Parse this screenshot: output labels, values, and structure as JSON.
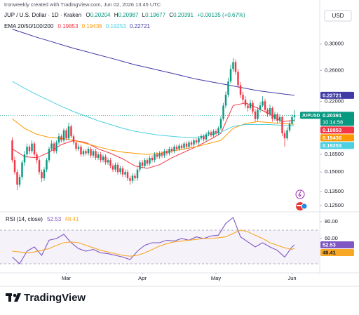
{
  "header": {
    "attribution": "tronweekly created with TradingView.com, Jun 02, 2026 13:45 UTC",
    "symbol": "JUP / U.S. Dollar · 1D · Kraken",
    "ohlc": [
      "O",
      "0.20204",
      "H",
      "0.20987",
      "L",
      "0.19677",
      "C",
      "0.20391",
      "+0.00135 (+0.67%)"
    ],
    "indicator": "EMA 20/50/100/200",
    "currency": "USD"
  },
  "chart_data": [
    {
      "type": "candlestick",
      "log_scale": true,
      "xlim": [
        -5,
        125
      ],
      "ylim": [
        0.1218,
        0.3475
      ],
      "up_color": "#089981",
      "down_color": "#f23645",
      "symbol_tag": "JUPUSD",
      "countdown": "10:14:58",
      "yticks": [
        {
          "value": 0.3,
          "label": "0.30000"
        },
        {
          "value": 0.26,
          "label": "0.26000"
        },
        {
          "value": 0.22,
          "label": "0.22000"
        },
        {
          "value": 0.165,
          "label": "0.16500"
        },
        {
          "value": 0.15,
          "label": "0.15000"
        },
        {
          "value": 0.135,
          "label": "0.13500"
        },
        {
          "value": 0.125,
          "label": "0.12500"
        }
      ],
      "candles": [
        [
          0.178,
          0.181,
          0.158,
          0.16
        ],
        [
          0.16,
          0.163,
          0.148,
          0.15
        ],
        [
          0.15,
          0.152,
          0.136,
          0.14
        ],
        [
          0.14,
          0.148,
          0.138,
          0.146
        ],
        [
          0.146,
          0.16,
          0.144,
          0.158
        ],
        [
          0.158,
          0.168,
          0.155,
          0.165
        ],
        [
          0.165,
          0.175,
          0.162,
          0.172
        ],
        [
          0.172,
          0.174,
          0.165,
          0.168
        ],
        [
          0.168,
          0.178,
          0.166,
          0.175
        ],
        [
          0.175,
          0.177,
          0.163,
          0.165
        ],
        [
          0.165,
          0.167,
          0.157,
          0.16
        ],
        [
          0.16,
          0.162,
          0.148,
          0.15
        ],
        [
          0.15,
          0.152,
          0.142,
          0.145
        ],
        [
          0.145,
          0.154,
          0.143,
          0.152
        ],
        [
          0.152,
          0.162,
          0.15,
          0.16
        ],
        [
          0.16,
          0.172,
          0.158,
          0.17
        ],
        [
          0.17,
          0.178,
          0.168,
          0.175
        ],
        [
          0.175,
          0.177,
          0.166,
          0.168
        ],
        [
          0.168,
          0.178,
          0.166,
          0.176
        ],
        [
          0.176,
          0.185,
          0.174,
          0.182
        ],
        [
          0.182,
          0.184,
          0.176,
          0.178
        ],
        [
          0.178,
          0.19,
          0.176,
          0.188
        ],
        [
          0.188,
          0.19,
          0.178,
          0.18
        ],
        [
          0.18,
          0.196,
          0.178,
          0.192
        ],
        [
          0.192,
          0.194,
          0.18,
          0.182
        ],
        [
          0.182,
          0.184,
          0.174,
          0.176
        ],
        [
          0.176,
          0.178,
          0.168,
          0.17
        ],
        [
          0.17,
          0.175,
          0.168,
          0.172
        ],
        [
          0.172,
          0.174,
          0.163,
          0.165
        ],
        [
          0.165,
          0.17,
          0.163,
          0.168
        ],
        [
          0.168,
          0.17,
          0.164,
          0.166
        ],
        [
          0.166,
          0.172,
          0.164,
          0.17
        ],
        [
          0.17,
          0.172,
          0.162,
          0.164
        ],
        [
          0.164,
          0.17,
          0.162,
          0.168
        ],
        [
          0.168,
          0.17,
          0.16,
          0.162
        ],
        [
          0.162,
          0.167,
          0.16,
          0.165
        ],
        [
          0.165,
          0.167,
          0.158,
          0.16
        ],
        [
          0.16,
          0.165,
          0.158,
          0.163
        ],
        [
          0.163,
          0.165,
          0.156,
          0.158
        ],
        [
          0.158,
          0.162,
          0.156,
          0.16
        ],
        [
          0.16,
          0.162,
          0.153,
          0.155
        ],
        [
          0.155,
          0.157,
          0.15,
          0.152
        ],
        [
          0.152,
          0.158,
          0.15,
          0.156
        ],
        [
          0.156,
          0.158,
          0.148,
          0.15
        ],
        [
          0.15,
          0.155,
          0.148,
          0.153
        ],
        [
          0.153,
          0.155,
          0.146,
          0.148
        ],
        [
          0.148,
          0.152,
          0.146,
          0.15
        ],
        [
          0.15,
          0.152,
          0.143,
          0.145
        ],
        [
          0.145,
          0.147,
          0.14,
          0.143
        ],
        [
          0.143,
          0.149,
          0.141,
          0.147
        ],
        [
          0.147,
          0.149,
          0.143,
          0.145
        ],
        [
          0.145,
          0.154,
          0.143,
          0.152
        ],
        [
          0.152,
          0.16,
          0.15,
          0.158
        ],
        [
          0.158,
          0.16,
          0.153,
          0.155
        ],
        [
          0.155,
          0.162,
          0.153,
          0.16
        ],
        [
          0.16,
          0.162,
          0.155,
          0.157
        ],
        [
          0.157,
          0.164,
          0.155,
          0.162
        ],
        [
          0.162,
          0.164,
          0.158,
          0.16
        ],
        [
          0.16,
          0.167,
          0.158,
          0.165
        ],
        [
          0.165,
          0.167,
          0.161,
          0.163
        ],
        [
          0.163,
          0.168,
          0.161,
          0.166
        ],
        [
          0.166,
          0.168,
          0.162,
          0.164
        ],
        [
          0.164,
          0.17,
          0.162,
          0.168
        ],
        [
          0.168,
          0.17,
          0.164,
          0.166
        ],
        [
          0.166,
          0.172,
          0.164,
          0.17
        ],
        [
          0.17,
          0.172,
          0.166,
          0.168
        ],
        [
          0.168,
          0.174,
          0.166,
          0.172
        ],
        [
          0.172,
          0.174,
          0.168,
          0.17
        ],
        [
          0.17,
          0.175,
          0.168,
          0.173
        ],
        [
          0.173,
          0.175,
          0.169,
          0.171
        ],
        [
          0.171,
          0.177,
          0.169,
          0.175
        ],
        [
          0.175,
          0.177,
          0.17,
          0.172
        ],
        [
          0.172,
          0.178,
          0.17,
          0.176
        ],
        [
          0.176,
          0.178,
          0.172,
          0.174
        ],
        [
          0.174,
          0.18,
          0.172,
          0.178
        ],
        [
          0.178,
          0.18,
          0.174,
          0.176
        ],
        [
          0.176,
          0.182,
          0.174,
          0.18
        ],
        [
          0.18,
          0.184,
          0.178,
          0.182
        ],
        [
          0.182,
          0.184,
          0.177,
          0.179
        ],
        [
          0.179,
          0.186,
          0.177,
          0.184
        ],
        [
          0.184,
          0.188,
          0.182,
          0.186
        ],
        [
          0.186,
          0.188,
          0.181,
          0.183
        ],
        [
          0.183,
          0.189,
          0.181,
          0.187
        ],
        [
          0.187,
          0.189,
          0.183,
          0.185
        ],
        [
          0.185,
          0.192,
          0.183,
          0.19
        ],
        [
          0.19,
          0.203,
          0.188,
          0.2
        ],
        [
          0.2,
          0.218,
          0.198,
          0.215
        ],
        [
          0.215,
          0.232,
          0.212,
          0.228
        ],
        [
          0.228,
          0.25,
          0.225,
          0.245
        ],
        [
          0.245,
          0.268,
          0.242,
          0.262
        ],
        [
          0.262,
          0.278,
          0.258,
          0.272
        ],
        [
          0.272,
          0.276,
          0.254,
          0.258
        ],
        [
          0.258,
          0.262,
          0.236,
          0.24
        ],
        [
          0.24,
          0.244,
          0.224,
          0.228
        ],
        [
          0.228,
          0.232,
          0.218,
          0.222
        ],
        [
          0.222,
          0.226,
          0.212,
          0.215
        ],
        [
          0.215,
          0.218,
          0.208,
          0.212
        ],
        [
          0.212,
          0.222,
          0.21,
          0.218
        ],
        [
          0.218,
          0.221,
          0.205,
          0.208
        ],
        [
          0.208,
          0.211,
          0.197,
          0.2
        ],
        [
          0.2,
          0.213,
          0.198,
          0.21
        ],
        [
          0.21,
          0.219,
          0.207,
          0.215
        ],
        [
          0.215,
          0.226,
          0.213,
          0.22
        ],
        [
          0.22,
          0.223,
          0.207,
          0.21
        ],
        [
          0.21,
          0.212,
          0.202,
          0.205
        ],
        [
          0.205,
          0.216,
          0.203,
          0.212
        ],
        [
          0.212,
          0.214,
          0.197,
          0.2
        ],
        [
          0.2,
          0.208,
          0.198,
          0.205
        ],
        [
          0.205,
          0.207,
          0.195,
          0.198
        ],
        [
          0.198,
          0.205,
          0.196,
          0.202
        ],
        [
          0.202,
          0.204,
          0.182,
          0.185
        ],
        [
          0.185,
          0.188,
          0.172,
          0.18
        ],
        [
          0.18,
          0.191,
          0.178,
          0.188
        ],
        [
          0.188,
          0.198,
          0.186,
          0.195
        ],
        [
          0.195,
          0.205,
          0.193,
          0.20204
        ],
        [
          0.20204,
          0.20987,
          0.19677,
          0.20391
        ]
      ],
      "series": [
        {
          "color": "#f23645",
          "x": [
            0,
            5,
            10,
            15,
            20,
            25,
            30,
            35,
            40,
            45,
            50,
            55,
            60,
            65,
            70,
            75,
            80,
            85,
            90,
            95,
            100,
            105,
            110,
            115
          ],
          "values": [
            0.17,
            0.163,
            0.162,
            0.167,
            0.174,
            0.178,
            0.176,
            0.17,
            0.166,
            0.161,
            0.155,
            0.153,
            0.156,
            0.162,
            0.167,
            0.172,
            0.178,
            0.185,
            0.215,
            0.218,
            0.212,
            0.205,
            0.197,
            0.19853
          ]
        },
        {
          "color": "#ff9800",
          "x": [
            0,
            5,
            10,
            15,
            20,
            25,
            30,
            35,
            40,
            45,
            50,
            55,
            60,
            65,
            70,
            75,
            80,
            85,
            90,
            95,
            100,
            105,
            110,
            115
          ],
          "values": [
            0.2,
            0.19,
            0.184,
            0.181,
            0.18,
            0.178,
            0.175,
            0.172,
            0.169,
            0.167,
            0.166,
            0.165,
            0.166,
            0.168,
            0.17,
            0.172,
            0.175,
            0.178,
            0.19,
            0.195,
            0.197,
            0.196,
            0.195,
            0.19436
          ]
        },
        {
          "color": "#4dd0e1",
          "x": [
            0,
            5,
            10,
            15,
            20,
            25,
            30,
            35,
            40,
            45,
            50,
            55,
            60,
            65,
            70,
            75,
            80,
            85,
            90,
            95,
            100,
            105,
            110,
            115
          ],
          "values": [
            0.245,
            0.236,
            0.228,
            0.221,
            0.214,
            0.208,
            0.203,
            0.198,
            0.194,
            0.19,
            0.187,
            0.185,
            0.183,
            0.182,
            0.181,
            0.181,
            0.183,
            0.186,
            0.192,
            0.194,
            0.194,
            0.194,
            0.193,
            0.19253
          ]
        },
        {
          "color": "#3f3aa6",
          "x": [
            0,
            5,
            10,
            15,
            20,
            25,
            30,
            35,
            40,
            45,
            50,
            55,
            60,
            65,
            70,
            75,
            80,
            85,
            90,
            95,
            100,
            105,
            110,
            115
          ],
          "values": [
            0.325,
            0.318,
            0.311,
            0.305,
            0.299,
            0.293,
            0.288,
            0.283,
            0.278,
            0.273,
            0.268,
            0.264,
            0.26,
            0.256,
            0.252,
            0.248,
            0.245,
            0.242,
            0.239,
            0.236,
            0.233,
            0.231,
            0.229,
            0.22721
          ]
        }
      ]
    },
    {
      "type": "line",
      "title": "RSI (14, close)",
      "xlim": [
        -5,
        125
      ],
      "ylim": [
        20,
        90
      ],
      "band": [
        30,
        70
      ],
      "band_color": "#7e57c2",
      "yticks": [
        {
          "value": 80,
          "label": "80.00"
        },
        {
          "value": 60,
          "label": "60.00"
        }
      ],
      "xticks": [
        {
          "value": 22,
          "label": "Mar"
        },
        {
          "value": 53,
          "label": "Apr"
        },
        {
          "value": 83,
          "label": "May"
        },
        {
          "value": 114,
          "label": "Jun"
        }
      ],
      "series": [
        {
          "color": "#7e57c2",
          "x": [
            0,
            3,
            6,
            9,
            12,
            15,
            18,
            21,
            24,
            27,
            30,
            33,
            36,
            39,
            42,
            45,
            48,
            51,
            54,
            57,
            60,
            63,
            66,
            69,
            72,
            75,
            78,
            81,
            84,
            87,
            90,
            93,
            96,
            99,
            102,
            105,
            108,
            111,
            114,
            115
          ],
          "values": [
            38,
            30,
            45,
            50,
            40,
            58,
            60,
            65,
            55,
            48,
            45,
            47,
            43,
            42,
            40,
            38,
            35,
            45,
            52,
            55,
            55,
            58,
            57,
            60,
            58,
            62,
            60,
            63,
            64,
            78,
            85,
            62,
            56,
            50,
            55,
            50,
            46,
            38,
            50,
            52.53
          ]
        },
        {
          "color": "#f9a825",
          "x": [
            0,
            3,
            6,
            9,
            12,
            15,
            18,
            21,
            24,
            27,
            30,
            33,
            36,
            39,
            42,
            45,
            48,
            51,
            54,
            57,
            60,
            63,
            66,
            69,
            72,
            75,
            78,
            81,
            84,
            87,
            90,
            93,
            96,
            99,
            102,
            105,
            108,
            111,
            114,
            115
          ],
          "values": [
            45,
            44,
            43,
            44,
            46,
            48,
            52,
            55,
            56,
            55,
            52,
            49,
            46,
            44,
            42,
            40,
            39,
            40,
            43,
            47,
            51,
            54,
            56,
            57,
            58,
            59,
            60,
            60,
            61,
            62,
            66,
            70,
            68,
            64,
            60,
            55,
            52,
            49,
            47,
            48.41
          ]
        }
      ]
    }
  ],
  "footer": {
    "logo": "TradingView"
  }
}
